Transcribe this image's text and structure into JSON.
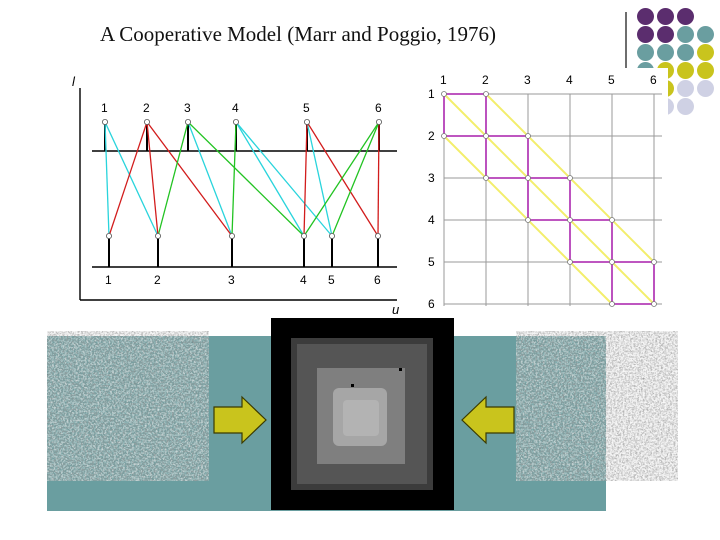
{
  "slide": {
    "title": "A Cooperative Model  (Marr and Poggio, 1976)"
  },
  "colors": {
    "purple": "#5b2d6e",
    "teal": "#6a9ea0",
    "olive": "#c9c41d",
    "lavender": "#cfd1e4",
    "cyan_match": "#29d4dc",
    "red_match": "#d21c1c",
    "green_match": "#22c322",
    "magenta_path": "#b53fb8",
    "yellow_diag": "#f3ee6c"
  },
  "left_diagram": {
    "axis_y_label": "l",
    "axis_x_label": "u",
    "top_labels": [
      "1",
      "2",
      "3",
      "4",
      "5",
      "6"
    ],
    "bottom_labels": [
      "1",
      "2",
      "3",
      "4",
      "5",
      "6"
    ]
  },
  "right_diagram": {
    "col_labels": [
      "1",
      "2",
      "3",
      "4",
      "5",
      "6"
    ],
    "row_labels": [
      "1",
      "2",
      "3",
      "4",
      "5",
      "6"
    ]
  },
  "images": {
    "left_stereo": "random-dot stereogram left",
    "right_stereo": "random-dot stereogram right",
    "disparity_map": "computed disparity map"
  }
}
